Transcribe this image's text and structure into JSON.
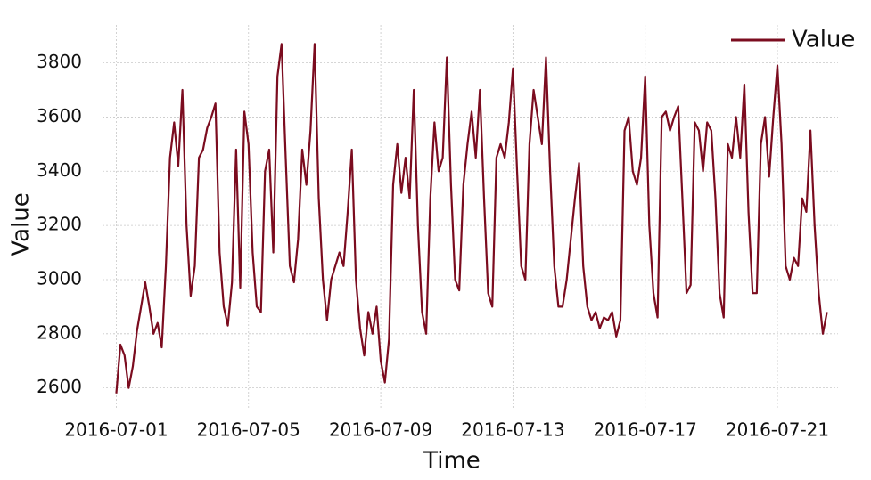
{
  "chart_data": {
    "type": "line",
    "x_label": "Time",
    "y_label": "Value",
    "x": [
      "2016-07-01T00:00",
      "2016-07-01T03:00",
      "2016-07-01T06:00",
      "2016-07-01T09:00",
      "2016-07-01T12:00",
      "2016-07-01T15:00",
      "2016-07-01T18:00",
      "2016-07-01T21:00",
      "2016-07-02T00:00",
      "2016-07-02T03:00",
      "2016-07-02T06:00",
      "2016-07-02T09:00",
      "2016-07-02T12:00",
      "2016-07-02T15:00",
      "2016-07-02T18:00",
      "2016-07-02T21:00",
      "2016-07-03T00:00",
      "2016-07-03T03:00",
      "2016-07-03T06:00",
      "2016-07-03T09:00",
      "2016-07-03T12:00",
      "2016-07-03T15:00",
      "2016-07-03T18:00",
      "2016-07-03T21:00",
      "2016-07-04T00:00",
      "2016-07-04T03:00",
      "2016-07-04T06:00",
      "2016-07-04T09:00",
      "2016-07-04T12:00",
      "2016-07-04T15:00",
      "2016-07-04T18:00",
      "2016-07-04T21:00",
      "2016-07-05T00:00",
      "2016-07-05T03:00",
      "2016-07-05T06:00",
      "2016-07-05T09:00",
      "2016-07-05T12:00",
      "2016-07-05T15:00",
      "2016-07-05T18:00",
      "2016-07-05T21:00",
      "2016-07-06T00:00",
      "2016-07-06T03:00",
      "2016-07-06T06:00",
      "2016-07-06T09:00",
      "2016-07-06T12:00",
      "2016-07-06T15:00",
      "2016-07-06T18:00",
      "2016-07-06T21:00",
      "2016-07-07T00:00",
      "2016-07-07T03:00",
      "2016-07-07T06:00",
      "2016-07-07T09:00",
      "2016-07-07T12:00",
      "2016-07-07T15:00",
      "2016-07-07T18:00",
      "2016-07-07T21:00",
      "2016-07-08T00:00",
      "2016-07-08T03:00",
      "2016-07-08T06:00",
      "2016-07-08T09:00",
      "2016-07-08T12:00",
      "2016-07-08T15:00",
      "2016-07-08T18:00",
      "2016-07-08T21:00",
      "2016-07-09T00:00",
      "2016-07-09T03:00",
      "2016-07-09T06:00",
      "2016-07-09T09:00",
      "2016-07-09T12:00",
      "2016-07-09T15:00",
      "2016-07-09T18:00",
      "2016-07-09T21:00",
      "2016-07-10T00:00",
      "2016-07-10T03:00",
      "2016-07-10T06:00",
      "2016-07-10T09:00",
      "2016-07-10T12:00",
      "2016-07-10T15:00",
      "2016-07-10T18:00",
      "2016-07-10T21:00",
      "2016-07-11T00:00",
      "2016-07-11T03:00",
      "2016-07-11T06:00",
      "2016-07-11T09:00",
      "2016-07-11T12:00",
      "2016-07-11T15:00",
      "2016-07-11T18:00",
      "2016-07-11T21:00",
      "2016-07-12T00:00",
      "2016-07-12T03:00",
      "2016-07-12T06:00",
      "2016-07-12T09:00",
      "2016-07-12T12:00",
      "2016-07-12T15:00",
      "2016-07-12T18:00",
      "2016-07-12T21:00",
      "2016-07-13T00:00",
      "2016-07-13T03:00",
      "2016-07-13T06:00",
      "2016-07-13T09:00",
      "2016-07-13T12:00",
      "2016-07-13T15:00",
      "2016-07-13T18:00",
      "2016-07-13T21:00",
      "2016-07-14T00:00",
      "2016-07-14T03:00",
      "2016-07-14T06:00",
      "2016-07-14T09:00",
      "2016-07-14T12:00",
      "2016-07-14T15:00",
      "2016-07-14T18:00",
      "2016-07-14T21:00",
      "2016-07-15T00:00",
      "2016-07-15T03:00",
      "2016-07-15T06:00",
      "2016-07-15T09:00",
      "2016-07-15T12:00",
      "2016-07-15T15:00",
      "2016-07-15T18:00",
      "2016-07-15T21:00",
      "2016-07-16T00:00",
      "2016-07-16T03:00",
      "2016-07-16T06:00",
      "2016-07-16T09:00",
      "2016-07-16T12:00",
      "2016-07-16T15:00",
      "2016-07-16T18:00",
      "2016-07-16T21:00",
      "2016-07-17T00:00",
      "2016-07-17T03:00",
      "2016-07-17T06:00",
      "2016-07-17T09:00",
      "2016-07-17T12:00",
      "2016-07-17T15:00",
      "2016-07-17T18:00",
      "2016-07-17T21:00",
      "2016-07-18T00:00",
      "2016-07-18T03:00",
      "2016-07-18T06:00",
      "2016-07-18T09:00",
      "2016-07-18T12:00",
      "2016-07-18T15:00",
      "2016-07-18T18:00",
      "2016-07-18T21:00",
      "2016-07-19T00:00",
      "2016-07-19T03:00",
      "2016-07-19T06:00",
      "2016-07-19T09:00",
      "2016-07-19T12:00",
      "2016-07-19T15:00",
      "2016-07-19T18:00",
      "2016-07-19T21:00",
      "2016-07-20T00:00",
      "2016-07-20T03:00",
      "2016-07-20T06:00",
      "2016-07-20T09:00",
      "2016-07-20T12:00",
      "2016-07-20T15:00",
      "2016-07-20T18:00",
      "2016-07-20T21:00",
      "2016-07-21T00:00",
      "2016-07-21T03:00",
      "2016-07-21T06:00",
      "2016-07-21T09:00",
      "2016-07-21T12:00",
      "2016-07-21T15:00",
      "2016-07-21T18:00",
      "2016-07-21T21:00",
      "2016-07-22T00:00",
      "2016-07-22T03:00",
      "2016-07-22T06:00",
      "2016-07-22T09:00",
      "2016-07-22T12:00"
    ],
    "series": [
      {
        "name": "Value",
        "color": "#7b0c1f",
        "values": [
          2580,
          2760,
          2720,
          2600,
          2680,
          2810,
          2900,
          2990,
          2900,
          2800,
          2840,
          2750,
          3050,
          3450,
          3580,
          3420,
          3700,
          3200,
          2940,
          3050,
          3450,
          3480,
          3560,
          3600,
          3650,
          3100,
          2900,
          2830,
          2990,
          3480,
          2970,
          3620,
          3500,
          3100,
          2900,
          2880,
          3400,
          3480,
          3100,
          3750,
          3870,
          3450,
          3050,
          2990,
          3150,
          3480,
          3350,
          3550,
          3870,
          3300,
          3000,
          2850,
          3000,
          3050,
          3100,
          3050,
          3250,
          3480,
          3000,
          2820,
          2720,
          2880,
          2800,
          2900,
          2700,
          2620,
          2780,
          3350,
          3500,
          3320,
          3450,
          3300,
          3700,
          3200,
          2880,
          2800,
          3300,
          3580,
          3400,
          3450,
          3820,
          3350,
          3000,
          2960,
          3350,
          3500,
          3620,
          3450,
          3700,
          3300,
          2950,
          2900,
          3450,
          3500,
          3450,
          3580,
          3780,
          3400,
          3050,
          3000,
          3500,
          3700,
          3600,
          3500,
          3820,
          3400,
          3050,
          2900,
          2900,
          3000,
          3150,
          3300,
          3430,
          3050,
          2900,
          2850,
          2880,
          2820,
          2860,
          2850,
          2880,
          2790,
          2850,
          3550,
          3600,
          3400,
          3350,
          3450,
          3750,
          3200,
          2950,
          2860,
          3600,
          3620,
          3550,
          3600,
          3640,
          3300,
          2950,
          2980,
          3580,
          3550,
          3400,
          3580,
          3550,
          3300,
          2950,
          2860,
          3500,
          3450,
          3600,
          3450,
          3720,
          3250,
          2950,
          2950,
          3500,
          3600,
          3380,
          3600,
          3790,
          3500,
          3050,
          3000,
          3080,
          3050,
          3300,
          3250,
          3550,
          3200,
          2950,
          2800,
          2880
        ]
      }
    ],
    "xlim": [
      "2016-06-30T14:00",
      "2016-07-22T20:00"
    ],
    "xticks": [
      "2016-07-01",
      "2016-07-05",
      "2016-07-09",
      "2016-07-13",
      "2016-07-17",
      "2016-07-21"
    ],
    "ylim": [
      2520,
      3940
    ],
    "yticks": [
      2600,
      2800,
      3000,
      3200,
      3400,
      3600,
      3800
    ],
    "grid": true,
    "legend": "upper right"
  }
}
